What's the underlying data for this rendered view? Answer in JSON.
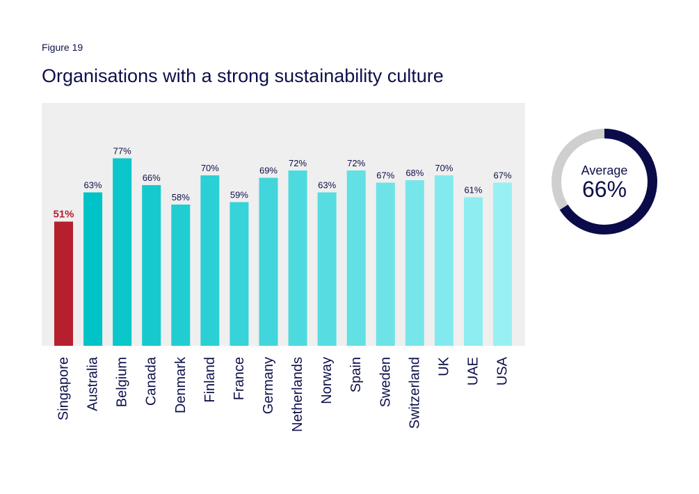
{
  "figure_label": "Figure 19",
  "title": "Organisations with a strong sustainability culture",
  "colors": {
    "highlight": "#b51f2e",
    "bar_dark": "#00c3c8",
    "bar_light": "#98f0f4",
    "plot_bg": "#efefef",
    "text": "#0d0f4a",
    "donut_fill": "#0b0b4a",
    "donut_rest": "#cfcfcf"
  },
  "average": {
    "label": "Average",
    "value_text": "66%",
    "value": 66
  },
  "chart_data": {
    "type": "bar",
    "title": "Organisations with a strong sustainability culture",
    "categories": [
      "Singapore",
      "Australia",
      "Belgium",
      "Canada",
      "Denmark",
      "Finland",
      "France",
      "Germany",
      "Netherlands",
      "Norway",
      "Spain",
      "Sweden",
      "Switzerland",
      "UK",
      "UAE",
      "USA"
    ],
    "values": [
      51,
      63,
      77,
      66,
      58,
      70,
      59,
      69,
      72,
      63,
      72,
      67,
      68,
      70,
      61,
      67
    ],
    "value_labels": [
      "51%",
      "63%",
      "77%",
      "66%",
      "58%",
      "70%",
      "59%",
      "69%",
      "72%",
      "63%",
      "72%",
      "67%",
      "68%",
      "70%",
      "61%",
      "67%"
    ],
    "highlight_category": "Singapore",
    "ylim": [
      0,
      100
    ],
    "grid": false,
    "xlabel": "",
    "ylabel": ""
  }
}
